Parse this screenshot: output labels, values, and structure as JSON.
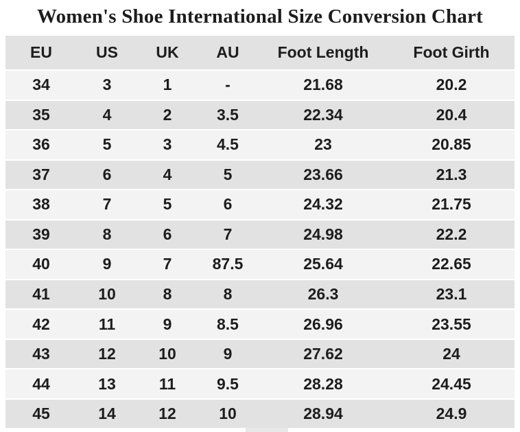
{
  "title": "Women's Shoe International Size Conversion Chart",
  "colors": {
    "background": "#ffffff",
    "row_light": "#f3f3f3",
    "row_dark": "#e2e2e2",
    "text": "#1d1d1d",
    "notch": "#e8e8e8"
  },
  "chart_data": {
    "type": "table",
    "title": "Women's Shoe International Size Conversion Chart",
    "columns": [
      "EU",
      "US",
      "UK",
      "AU",
      "Foot Length",
      "Foot Girth"
    ],
    "rows": [
      [
        "34",
        "3",
        "1",
        "-",
        "21.68",
        "20.2"
      ],
      [
        "35",
        "4",
        "2",
        "3.5",
        "22.34",
        "20.4"
      ],
      [
        "36",
        "5",
        "3",
        "4.5",
        "23",
        "20.85"
      ],
      [
        "37",
        "6",
        "4",
        "5",
        "23.66",
        "21.3"
      ],
      [
        "38",
        "7",
        "5",
        "6",
        "24.32",
        "21.75"
      ],
      [
        "39",
        "8",
        "6",
        "7",
        "24.98",
        "22.2"
      ],
      [
        "40",
        "9",
        "7",
        "87.5",
        "25.64",
        "22.65"
      ],
      [
        "41",
        "10",
        "8",
        "8",
        "26.3",
        "23.1"
      ],
      [
        "42",
        "11",
        "9",
        "8.5",
        "26.96",
        "23.55"
      ],
      [
        "43",
        "12",
        "10",
        "9",
        "27.62",
        "24"
      ],
      [
        "44",
        "13",
        "11",
        "9.5",
        "28.28",
        "24.45"
      ],
      [
        "45",
        "14",
        "12",
        "10",
        "28.94",
        "24.9"
      ]
    ],
    "layout": {
      "grid": "off",
      "striped_rows": true,
      "header_background": "gray",
      "alignment": "center"
    }
  }
}
